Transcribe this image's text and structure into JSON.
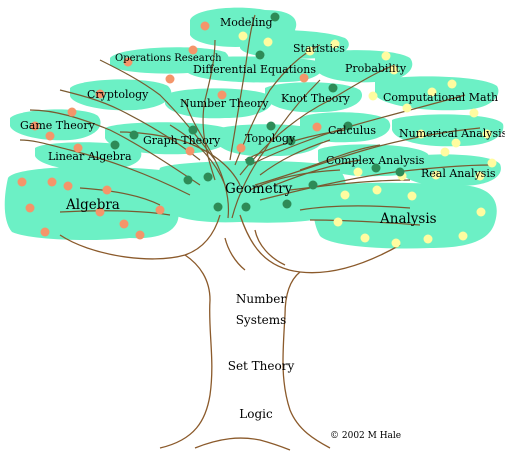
{
  "branches": {
    "modeling": "Modeling",
    "statistics": "Statistics",
    "operations_research": "Operations Research",
    "differential_equations": "Differential Equations",
    "probability": "Probability",
    "cryptology": "Cryptology",
    "number_theory": "Number Theory",
    "knot_theory": "Knot Theory",
    "computational_math": "Computational Math",
    "game_theory": "Game Theory",
    "calculus": "Calculus",
    "numerical_analysis": "Numerical Analysis",
    "graph_theory": "Graph Theory",
    "topology": "Topology",
    "linear_algebra": "Linear Algebra",
    "complex_analysis": "Complex Analysis",
    "real_analysis": "Real Analysis",
    "algebra": "Algebra",
    "geometry": "Geometry",
    "analysis": "Analysis"
  },
  "trunk": {
    "number": "Number",
    "systems": "Systems",
    "set_theory": "Set Theory",
    "logic": "Logic"
  },
  "credit": "© 2002 M Hale",
  "colors": {
    "foliage": "#6CF0C5",
    "trunk_line": "#8B5A2B",
    "branch_line": "#7A5A30",
    "fruit_orange": "#F4956A",
    "fruit_yellow": "#FFFCA0",
    "fruit_green": "#2E8B57"
  }
}
